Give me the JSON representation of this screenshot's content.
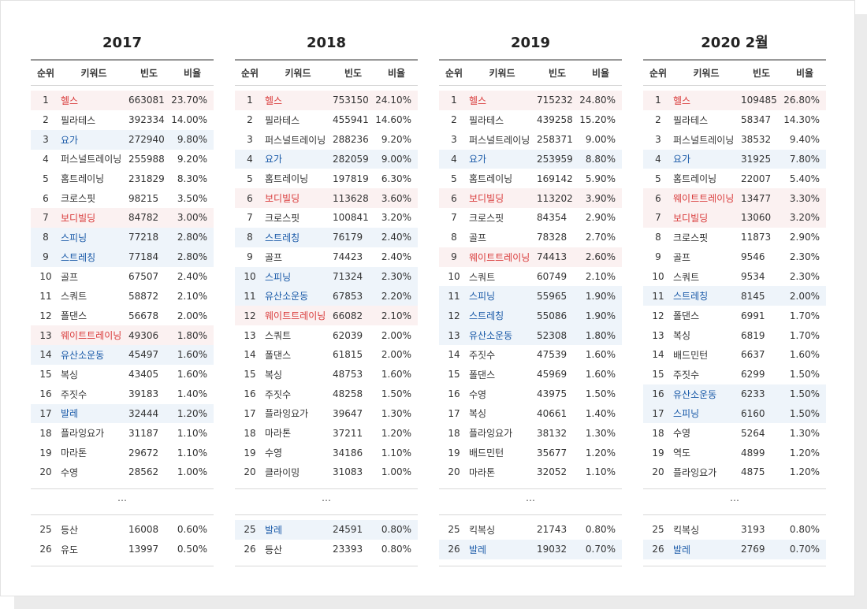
{
  "columns": [
    {
      "title": "2017",
      "headers": [
        "순위",
        "키워드",
        "빈도",
        "비율"
      ],
      "rows": [
        {
          "rank": "1",
          "keyword": "헬스",
          "freq": "663081",
          "ratio": "23.70%",
          "hl": "red"
        },
        {
          "rank": "2",
          "keyword": "필라테스",
          "freq": "392334",
          "ratio": "14.00%",
          "hl": ""
        },
        {
          "rank": "3",
          "keyword": "요가",
          "freq": "272940",
          "ratio": "9.80%",
          "hl": "blue"
        },
        {
          "rank": "4",
          "keyword": "퍼스널트레이닝",
          "freq": "255988",
          "ratio": "9.20%",
          "hl": ""
        },
        {
          "rank": "5",
          "keyword": "홈트레이닝",
          "freq": "231829",
          "ratio": "8.30%",
          "hl": ""
        },
        {
          "rank": "6",
          "keyword": "크로스핏",
          "freq": "98215",
          "ratio": "3.50%",
          "hl": ""
        },
        {
          "rank": "7",
          "keyword": "보디빌딩",
          "freq": "84782",
          "ratio": "3.00%",
          "hl": "red"
        },
        {
          "rank": "8",
          "keyword": "스피닝",
          "freq": "77218",
          "ratio": "2.80%",
          "hl": "blue"
        },
        {
          "rank": "9",
          "keyword": "스트레칭",
          "freq": "77184",
          "ratio": "2.80%",
          "hl": "blue"
        },
        {
          "rank": "10",
          "keyword": "골프",
          "freq": "67507",
          "ratio": "2.40%",
          "hl": ""
        },
        {
          "rank": "11",
          "keyword": "스쿼트",
          "freq": "58872",
          "ratio": "2.10%",
          "hl": ""
        },
        {
          "rank": "12",
          "keyword": "폴댄스",
          "freq": "56678",
          "ratio": "2.00%",
          "hl": ""
        },
        {
          "rank": "13",
          "keyword": "웨이트트레이닝",
          "freq": "49306",
          "ratio": "1.80%",
          "hl": "red"
        },
        {
          "rank": "14",
          "keyword": "유산소운동",
          "freq": "45497",
          "ratio": "1.60%",
          "hl": "blue"
        },
        {
          "rank": "15",
          "keyword": "복싱",
          "freq": "43405",
          "ratio": "1.60%",
          "hl": ""
        },
        {
          "rank": "16",
          "keyword": "주짓수",
          "freq": "39183",
          "ratio": "1.40%",
          "hl": ""
        },
        {
          "rank": "17",
          "keyword": "발레",
          "freq": "32444",
          "ratio": "1.20%",
          "hl": "blue"
        },
        {
          "rank": "18",
          "keyword": "플라잉요가",
          "freq": "31187",
          "ratio": "1.10%",
          "hl": ""
        },
        {
          "rank": "19",
          "keyword": "마라톤",
          "freq": "29672",
          "ratio": "1.10%",
          "hl": ""
        },
        {
          "rank": "20",
          "keyword": "수영",
          "freq": "28562",
          "ratio": "1.00%",
          "hl": ""
        }
      ],
      "ellipsis": "…",
      "tail": [
        {
          "rank": "25",
          "keyword": "등산",
          "freq": "16008",
          "ratio": "0.60%",
          "hl": ""
        },
        {
          "rank": "26",
          "keyword": "유도",
          "freq": "13997",
          "ratio": "0.50%",
          "hl": ""
        }
      ]
    },
    {
      "title": "2018",
      "headers": [
        "순위",
        "키워드",
        "빈도",
        "비율"
      ],
      "rows": [
        {
          "rank": "1",
          "keyword": "헬스",
          "freq": "753150",
          "ratio": "24.10%",
          "hl": "red"
        },
        {
          "rank": "2",
          "keyword": "필라테스",
          "freq": "455941",
          "ratio": "14.60%",
          "hl": ""
        },
        {
          "rank": "3",
          "keyword": "퍼스널트레이닝",
          "freq": "288236",
          "ratio": "9.20%",
          "hl": ""
        },
        {
          "rank": "4",
          "keyword": "요가",
          "freq": "282059",
          "ratio": "9.00%",
          "hl": "blue"
        },
        {
          "rank": "5",
          "keyword": "홈트레이닝",
          "freq": "197819",
          "ratio": "6.30%",
          "hl": ""
        },
        {
          "rank": "6",
          "keyword": "보디빌딩",
          "freq": "113628",
          "ratio": "3.60%",
          "hl": "red"
        },
        {
          "rank": "7",
          "keyword": "크로스핏",
          "freq": "100841",
          "ratio": "3.20%",
          "hl": ""
        },
        {
          "rank": "8",
          "keyword": "스트레칭",
          "freq": "76179",
          "ratio": "2.40%",
          "hl": "blue"
        },
        {
          "rank": "9",
          "keyword": "골프",
          "freq": "74423",
          "ratio": "2.40%",
          "hl": ""
        },
        {
          "rank": "10",
          "keyword": "스피닝",
          "freq": "71324",
          "ratio": "2.30%",
          "hl": "blue"
        },
        {
          "rank": "11",
          "keyword": "유산소운동",
          "freq": "67853",
          "ratio": "2.20%",
          "hl": "blue"
        },
        {
          "rank": "12",
          "keyword": "웨이트트레이닝",
          "freq": "66082",
          "ratio": "2.10%",
          "hl": "red"
        },
        {
          "rank": "13",
          "keyword": "스쿼트",
          "freq": "62039",
          "ratio": "2.00%",
          "hl": ""
        },
        {
          "rank": "14",
          "keyword": "폴댄스",
          "freq": "61815",
          "ratio": "2.00%",
          "hl": ""
        },
        {
          "rank": "15",
          "keyword": "복싱",
          "freq": "48753",
          "ratio": "1.60%",
          "hl": ""
        },
        {
          "rank": "16",
          "keyword": "주짓수",
          "freq": "48258",
          "ratio": "1.50%",
          "hl": ""
        },
        {
          "rank": "17",
          "keyword": "플라잉요가",
          "freq": "39647",
          "ratio": "1.30%",
          "hl": ""
        },
        {
          "rank": "18",
          "keyword": "마라톤",
          "freq": "37211",
          "ratio": "1.20%",
          "hl": ""
        },
        {
          "rank": "19",
          "keyword": "수영",
          "freq": "34186",
          "ratio": "1.10%",
          "hl": ""
        },
        {
          "rank": "20",
          "keyword": "클라이밍",
          "freq": "31083",
          "ratio": "1.00%",
          "hl": ""
        }
      ],
      "ellipsis": "…",
      "tail": [
        {
          "rank": "25",
          "keyword": "발레",
          "freq": "24591",
          "ratio": "0.80%",
          "hl": "blue"
        },
        {
          "rank": "26",
          "keyword": "등산",
          "freq": "23393",
          "ratio": "0.80%",
          "hl": ""
        }
      ]
    },
    {
      "title": "2019",
      "headers": [
        "순위",
        "키워드",
        "빈도",
        "비율"
      ],
      "rows": [
        {
          "rank": "1",
          "keyword": "헬스",
          "freq": "715232",
          "ratio": "24.80%",
          "hl": "red"
        },
        {
          "rank": "2",
          "keyword": "필라테스",
          "freq": "439258",
          "ratio": "15.20%",
          "hl": ""
        },
        {
          "rank": "3",
          "keyword": "퍼스널트레이닝",
          "freq": "258371",
          "ratio": "9.00%",
          "hl": ""
        },
        {
          "rank": "4",
          "keyword": "요가",
          "freq": "253959",
          "ratio": "8.80%",
          "hl": "blue"
        },
        {
          "rank": "5",
          "keyword": "홈트레이닝",
          "freq": "169142",
          "ratio": "5.90%",
          "hl": ""
        },
        {
          "rank": "6",
          "keyword": "보디빌딩",
          "freq": "113202",
          "ratio": "3.90%",
          "hl": "red"
        },
        {
          "rank": "7",
          "keyword": "크로스핏",
          "freq": "84354",
          "ratio": "2.90%",
          "hl": ""
        },
        {
          "rank": "8",
          "keyword": "골프",
          "freq": "78328",
          "ratio": "2.70%",
          "hl": ""
        },
        {
          "rank": "9",
          "keyword": "웨이트트레이닝",
          "freq": "74413",
          "ratio": "2.60%",
          "hl": "red"
        },
        {
          "rank": "10",
          "keyword": "스쿼트",
          "freq": "60749",
          "ratio": "2.10%",
          "hl": ""
        },
        {
          "rank": "11",
          "keyword": "스피닝",
          "freq": "55965",
          "ratio": "1.90%",
          "hl": "blue"
        },
        {
          "rank": "12",
          "keyword": "스트레칭",
          "freq": "55086",
          "ratio": "1.90%",
          "hl": "blue"
        },
        {
          "rank": "13",
          "keyword": "유산소운동",
          "freq": "52308",
          "ratio": "1.80%",
          "hl": "blue"
        },
        {
          "rank": "14",
          "keyword": "주짓수",
          "freq": "47539",
          "ratio": "1.60%",
          "hl": ""
        },
        {
          "rank": "15",
          "keyword": "폴댄스",
          "freq": "45969",
          "ratio": "1.60%",
          "hl": ""
        },
        {
          "rank": "16",
          "keyword": "수영",
          "freq": "43975",
          "ratio": "1.50%",
          "hl": ""
        },
        {
          "rank": "17",
          "keyword": "복싱",
          "freq": "40661",
          "ratio": "1.40%",
          "hl": ""
        },
        {
          "rank": "18",
          "keyword": "플라잉요가",
          "freq": "38132",
          "ratio": "1.30%",
          "hl": ""
        },
        {
          "rank": "19",
          "keyword": "배드민턴",
          "freq": "35677",
          "ratio": "1.20%",
          "hl": ""
        },
        {
          "rank": "20",
          "keyword": "마라톤",
          "freq": "32052",
          "ratio": "1.10%",
          "hl": ""
        }
      ],
      "ellipsis": "…",
      "tail": [
        {
          "rank": "25",
          "keyword": "킥복싱",
          "freq": "21743",
          "ratio": "0.80%",
          "hl": ""
        },
        {
          "rank": "26",
          "keyword": "발레",
          "freq": "19032",
          "ratio": "0.70%",
          "hl": "blue"
        }
      ]
    },
    {
      "title": "2020 2월",
      "headers": [
        "순위",
        "키워드",
        "빈도",
        "비율"
      ],
      "rows": [
        {
          "rank": "1",
          "keyword": "헬스",
          "freq": "109485",
          "ratio": "26.80%",
          "hl": "red"
        },
        {
          "rank": "2",
          "keyword": "필라테스",
          "freq": "58347",
          "ratio": "14.30%",
          "hl": ""
        },
        {
          "rank": "3",
          "keyword": "퍼스널트레이닝",
          "freq": "38532",
          "ratio": "9.40%",
          "hl": ""
        },
        {
          "rank": "4",
          "keyword": "요가",
          "freq": "31925",
          "ratio": "7.80%",
          "hl": "blue"
        },
        {
          "rank": "5",
          "keyword": "홈트레이닝",
          "freq": "22007",
          "ratio": "5.40%",
          "hl": ""
        },
        {
          "rank": "6",
          "keyword": "웨이트트레이닝",
          "freq": "13477",
          "ratio": "3.30%",
          "hl": "red"
        },
        {
          "rank": "7",
          "keyword": "보디빌딩",
          "freq": "13060",
          "ratio": "3.20%",
          "hl": "red"
        },
        {
          "rank": "8",
          "keyword": "크로스핏",
          "freq": "11873",
          "ratio": "2.90%",
          "hl": ""
        },
        {
          "rank": "9",
          "keyword": "골프",
          "freq": "9546",
          "ratio": "2.30%",
          "hl": ""
        },
        {
          "rank": "10",
          "keyword": "스쿼트",
          "freq": "9534",
          "ratio": "2.30%",
          "hl": ""
        },
        {
          "rank": "11",
          "keyword": "스트레칭",
          "freq": "8145",
          "ratio": "2.00%",
          "hl": "blue"
        },
        {
          "rank": "12",
          "keyword": "폴댄스",
          "freq": "6991",
          "ratio": "1.70%",
          "hl": ""
        },
        {
          "rank": "13",
          "keyword": "복싱",
          "freq": "6819",
          "ratio": "1.70%",
          "hl": ""
        },
        {
          "rank": "14",
          "keyword": "배드민턴",
          "freq": "6637",
          "ratio": "1.60%",
          "hl": ""
        },
        {
          "rank": "15",
          "keyword": "주짓수",
          "freq": "6299",
          "ratio": "1.50%",
          "hl": ""
        },
        {
          "rank": "16",
          "keyword": "유산소운동",
          "freq": "6233",
          "ratio": "1.50%",
          "hl": "blue"
        },
        {
          "rank": "17",
          "keyword": "스피닝",
          "freq": "6160",
          "ratio": "1.50%",
          "hl": "blue"
        },
        {
          "rank": "18",
          "keyword": "수영",
          "freq": "5264",
          "ratio": "1.30%",
          "hl": ""
        },
        {
          "rank": "19",
          "keyword": "역도",
          "freq": "4899",
          "ratio": "1.20%",
          "hl": ""
        },
        {
          "rank": "20",
          "keyword": "플라잉요가",
          "freq": "4875",
          "ratio": "1.20%",
          "hl": ""
        }
      ],
      "ellipsis": "…",
      "tail": [
        {
          "rank": "25",
          "keyword": "킥복싱",
          "freq": "3193",
          "ratio": "0.80%",
          "hl": ""
        },
        {
          "rank": "26",
          "keyword": "발레",
          "freq": "2769",
          "ratio": "0.70%",
          "hl": "blue"
        }
      ]
    }
  ]
}
